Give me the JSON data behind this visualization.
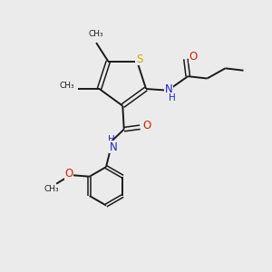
{
  "background_color": "#ebebeb",
  "bond_color": "#1a1a1a",
  "S_color": "#ccaa00",
  "N_color": "#2222cc",
  "O_color": "#cc2200",
  "figsize": [
    3.0,
    3.0
  ],
  "dpi": 100,
  "xlim": [
    0,
    10
  ],
  "ylim": [
    0,
    10
  ]
}
